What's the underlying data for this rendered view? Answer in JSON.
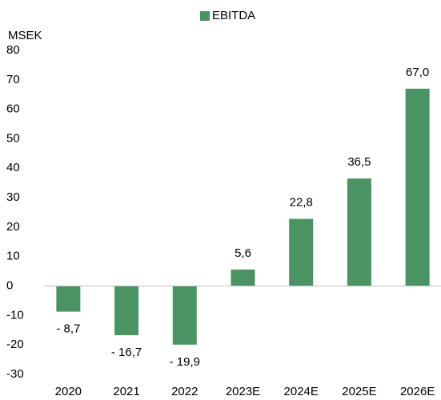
{
  "chart_data": {
    "type": "bar",
    "y_axis_label": "MSEK",
    "categories": [
      "2020",
      "2021",
      "2022",
      "2023E",
      "2024E",
      "2025E",
      "2026E"
    ],
    "series": [
      {
        "name": "EBITDA",
        "color": "#4a9464",
        "values": [
          -8.7,
          -16.7,
          -19.9,
          5.6,
          22.8,
          36.5,
          67.0
        ],
        "value_labels": [
          "- 8,7",
          "- 16,7",
          "- 19,9",
          "5,6",
          "22,8",
          "36,5",
          "67,0"
        ]
      }
    ],
    "ylim": [
      -30,
      80
    ],
    "yticks": [
      -30,
      -20,
      -10,
      0,
      10,
      20,
      30,
      40,
      50,
      60,
      70,
      80
    ],
    "grid": false,
    "legend": "top"
  }
}
